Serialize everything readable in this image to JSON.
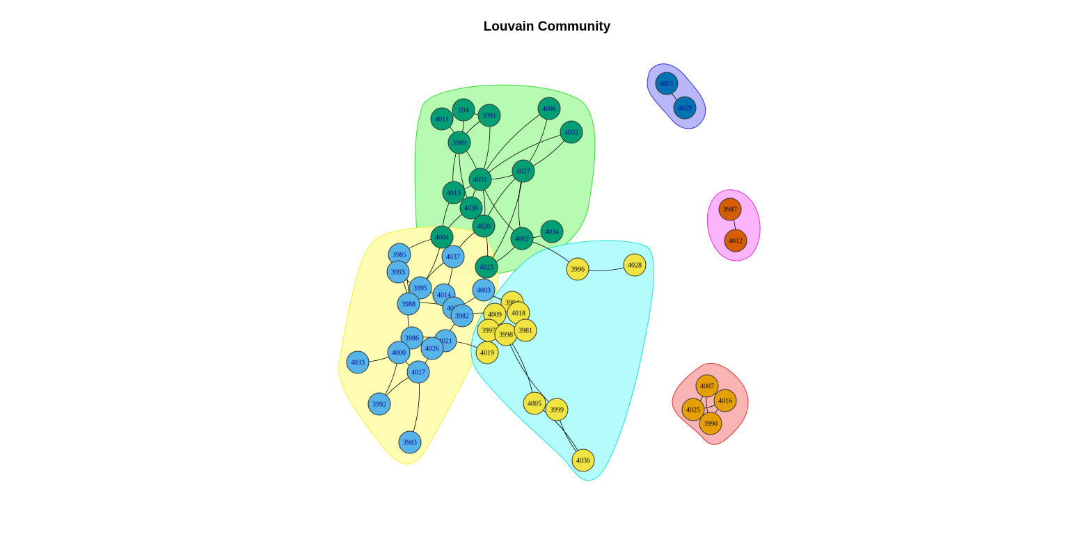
{
  "title": "Louvain Community",
  "colors": {
    "node_green": "#009E73",
    "node_blue": "#56B4E9",
    "node_yellow": "#F0E442",
    "node_navy": "#0072B2",
    "node_orange": "#D55E00",
    "node_amber": "#E69F00",
    "label_dark": "#00008B",
    "hull_green": "#B3FAAE",
    "hull_yellow": "#FFFCB0",
    "hull_cyan": "#B0FCFC",
    "hull_blue": "#B3B3FA",
    "hull_pink": "#FCB0FC",
    "hull_red": "#FAB0B0"
  },
  "communities": [
    {
      "id": "green",
      "node_color": "node_green",
      "label_color": "label_dark",
      "hull_fill": "hull_green",
      "hull_stroke": "#33DD33",
      "members": [
        "4011",
        "594",
        "3991",
        "4006",
        "4032",
        "3989",
        "4027",
        "4031",
        "4013",
        "4038",
        "4020",
        "4004",
        "4034",
        "4002",
        "4023"
      ]
    },
    {
      "id": "blue",
      "node_color": "node_blue",
      "label_color": "label_dark",
      "hull_fill": "hull_yellow",
      "hull_stroke": "#F0F03A",
      "members": [
        "3985",
        "3993",
        "4037",
        "3995",
        "4014",
        "4003",
        "3988",
        "4030",
        "3982",
        "3986",
        "4021",
        "4000",
        "4026",
        "4033",
        "4017",
        "3992",
        "3983"
      ]
    },
    {
      "id": "yellow",
      "node_color": "node_yellow",
      "label_color": "#000000",
      "hull_fill": "hull_cyan",
      "hull_stroke": "#22DDDD",
      "members": [
        "3996",
        "4028",
        "3994",
        "4018",
        "4009",
        "3997",
        "3998",
        "3981",
        "4019",
        "4005",
        "3999",
        "4036"
      ]
    },
    {
      "id": "navy",
      "node_color": "node_navy",
      "label_color": "label_dark",
      "hull_fill": "hull_blue",
      "hull_stroke": "#3333DD",
      "members": [
        "4001",
        "4029"
      ]
    },
    {
      "id": "orange",
      "node_color": "node_orange",
      "label_color": "#000000",
      "hull_fill": "hull_pink",
      "hull_stroke": "#DD33DD",
      "members": [
        "3987",
        "4012"
      ]
    },
    {
      "id": "amber",
      "node_color": "node_amber",
      "label_color": "#000000",
      "hull_fill": "hull_red",
      "hull_stroke": "#DD3333",
      "members": [
        "4007",
        "4016",
        "4025",
        "3990"
      ]
    }
  ],
  "edges": [
    [
      "4011",
      "594"
    ],
    [
      "4011",
      "3989"
    ],
    [
      "594",
      "3991"
    ],
    [
      "594",
      "3989"
    ],
    [
      "3991",
      "3989"
    ],
    [
      "3991",
      "4031"
    ],
    [
      "3989",
      "4013"
    ],
    [
      "3989",
      "4031"
    ],
    [
      "3989",
      "4038"
    ],
    [
      "4006",
      "4027"
    ],
    [
      "4006",
      "4031"
    ],
    [
      "4032",
      "4027"
    ],
    [
      "4032",
      "4031"
    ],
    [
      "4027",
      "4031"
    ],
    [
      "4027",
      "4002"
    ],
    [
      "4027",
      "4023"
    ],
    [
      "4027",
      "4020"
    ],
    [
      "4031",
      "4013"
    ],
    [
      "4031",
      "4038"
    ],
    [
      "4031",
      "4020"
    ],
    [
      "4031",
      "4002"
    ],
    [
      "4013",
      "4038"
    ],
    [
      "4013",
      "4004"
    ],
    [
      "4038",
      "4020"
    ],
    [
      "4038",
      "4004"
    ],
    [
      "4020",
      "4023"
    ],
    [
      "4020",
      "4037"
    ],
    [
      "4002",
      "4023"
    ],
    [
      "4002",
      "4034"
    ],
    [
      "4002",
      "3996"
    ],
    [
      "4023",
      "4003"
    ],
    [
      "4004",
      "4037"
    ],
    [
      "4004",
      "3985"
    ],
    [
      "4004",
      "3995"
    ],
    [
      "4037",
      "3995"
    ],
    [
      "4037",
      "4014"
    ],
    [
      "3985",
      "3993"
    ],
    [
      "3985",
      "3988"
    ],
    [
      "3993",
      "3995"
    ],
    [
      "3993",
      "3988"
    ],
    [
      "3995",
      "4014"
    ],
    [
      "3995",
      "3988"
    ],
    [
      "4014",
      "4030"
    ],
    [
      "4003",
      "4030"
    ],
    [
      "4003",
      "3994"
    ],
    [
      "3988",
      "4030"
    ],
    [
      "3988",
      "3986"
    ],
    [
      "4030",
      "3982"
    ],
    [
      "3982",
      "4021"
    ],
    [
      "3986",
      "4021"
    ],
    [
      "3986",
      "4000"
    ],
    [
      "3986",
      "4026"
    ],
    [
      "4021",
      "4026"
    ],
    [
      "4000",
      "4033"
    ],
    [
      "4000",
      "4017"
    ],
    [
      "4026",
      "4017"
    ],
    [
      "4017",
      "3992"
    ],
    [
      "4017",
      "3983"
    ],
    [
      "3992",
      "4000"
    ],
    [
      "3982",
      "4009"
    ],
    [
      "3996",
      "4028"
    ],
    [
      "3994",
      "4018"
    ],
    [
      "4009",
      "3997"
    ],
    [
      "4009",
      "3998"
    ],
    [
      "3997",
      "3998"
    ],
    [
      "3998",
      "3981"
    ],
    [
      "4018",
      "3981"
    ],
    [
      "3997",
      "4019"
    ],
    [
      "4019",
      "4021"
    ],
    [
      "3998",
      "4005"
    ],
    [
      "3998",
      "3999"
    ],
    [
      "4005",
      "3999"
    ],
    [
      "3999",
      "4036"
    ],
    [
      "4005",
      "4036"
    ],
    [
      "4001",
      "4029"
    ],
    [
      "3987",
      "4012"
    ],
    [
      "4007",
      "4016"
    ],
    [
      "4007",
      "4025"
    ],
    [
      "4007",
      "3990"
    ],
    [
      "4016",
      "4025"
    ],
    [
      "4016",
      "3990"
    ],
    [
      "4025",
      "3990"
    ]
  ]
}
